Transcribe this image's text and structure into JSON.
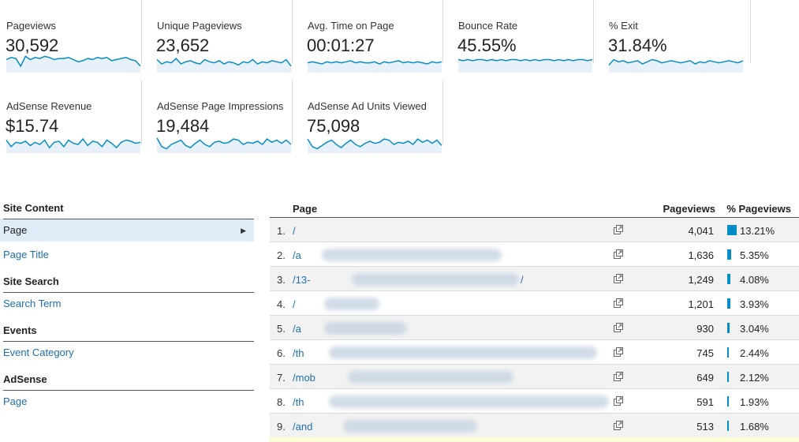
{
  "metrics": [
    {
      "id": "pageviews",
      "label": "Pageviews",
      "value": "30,592",
      "spark": [
        12,
        14,
        13,
        6,
        15,
        12,
        14,
        13,
        15,
        14,
        12,
        13,
        13,
        14,
        12,
        10,
        11,
        13,
        12,
        14,
        13,
        14,
        11,
        12,
        13,
        14,
        12,
        11,
        6
      ]
    },
    {
      "id": "unique-pageviews",
      "label": "Unique Pageviews",
      "value": "23,652",
      "spark": [
        12,
        8,
        10,
        9,
        13,
        8,
        10,
        11,
        9,
        8,
        12,
        10,
        9,
        11,
        8,
        10,
        9,
        7,
        10,
        9,
        12,
        8,
        10,
        9,
        11,
        10,
        9,
        12,
        6
      ]
    },
    {
      "id": "avg-time",
      "label": "Avg. Time on Page",
      "value": "00:01:27",
      "spark": [
        9,
        10,
        9,
        8,
        10,
        9,
        10,
        9,
        10,
        11,
        9,
        10,
        9,
        9,
        10,
        8,
        10,
        9,
        10,
        11,
        9,
        10,
        9,
        10,
        9,
        8,
        10,
        9,
        10
      ]
    },
    {
      "id": "bounce-rate",
      "label": "Bounce Rate",
      "value": "45.55%",
      "spark": [
        12,
        11,
        12,
        11,
        12,
        12,
        11,
        12,
        11,
        12,
        11,
        12,
        12,
        11,
        12,
        11,
        12,
        11,
        12,
        12,
        11,
        12,
        11,
        12,
        11,
        12,
        12,
        11,
        12
      ]
    },
    {
      "id": "exit",
      "label": "% Exit",
      "value": "31.84%",
      "spark": [
        7,
        12,
        10,
        11,
        9,
        10,
        11,
        8,
        10,
        12,
        11,
        9,
        10,
        11,
        10,
        9,
        10,
        11,
        8,
        10,
        9,
        11,
        10,
        9,
        10,
        11,
        10,
        9,
        11
      ]
    },
    {
      "id": "adsense-revenue",
      "label": "AdSense Revenue",
      "value": "$15.74",
      "spark": [
        12,
        6,
        10,
        9,
        11,
        7,
        10,
        8,
        12,
        5,
        10,
        11,
        6,
        12,
        9,
        8,
        13,
        7,
        11,
        10,
        6,
        12,
        9,
        5,
        10,
        12,
        11,
        9,
        10
      ]
    },
    {
      "id": "adsense-impressions",
      "label": "AdSense Page Impressions",
      "value": "19,484",
      "spark": [
        14,
        6,
        4,
        8,
        10,
        12,
        7,
        5,
        9,
        12,
        8,
        6,
        10,
        11,
        9,
        10,
        13,
        12,
        8,
        10,
        9,
        11,
        8,
        13,
        10,
        12,
        9,
        12,
        8
      ]
    },
    {
      "id": "adsense-units",
      "label": "AdSense Ad Units Viewed",
      "value": "75,098",
      "spark": [
        13,
        6,
        4,
        7,
        10,
        12,
        8,
        5,
        9,
        12,
        8,
        6,
        9,
        11,
        9,
        10,
        13,
        12,
        8,
        10,
        9,
        11,
        8,
        13,
        10,
        12,
        9,
        12,
        7
      ]
    }
  ],
  "nav": {
    "site_content": {
      "heading": "Site Content",
      "items": [
        "Page",
        "Page Title"
      ],
      "selected": "Page"
    },
    "site_search": {
      "heading": "Site Search",
      "items": [
        "Search Term"
      ]
    },
    "events": {
      "heading": "Events",
      "items": [
        "Event Category"
      ]
    },
    "adsense": {
      "heading": "AdSense",
      "items": [
        "Page"
      ]
    }
  },
  "table": {
    "columns": {
      "page": "Page",
      "pageviews": "Pageviews",
      "pct": "% Pageviews"
    },
    "rows": [
      {
        "rank": "1.",
        "page": "/",
        "pageviews": "4,041",
        "pct": "13.21%",
        "pct_value": 13.21
      },
      {
        "rank": "2.",
        "page": "/a",
        "pageviews": "1,636",
        "pct": "5.35%",
        "pct_value": 5.35
      },
      {
        "rank": "3.",
        "page": "/13-",
        "suffix": "/",
        "pageviews": "1,249",
        "pct": "4.08%",
        "pct_value": 4.08
      },
      {
        "rank": "4.",
        "page": "/",
        "pageviews": "1,201",
        "pct": "3.93%",
        "pct_value": 3.93
      },
      {
        "rank": "5.",
        "page": "/a",
        "pageviews": "930",
        "pct": "3.04%",
        "pct_value": 3.04
      },
      {
        "rank": "6.",
        "page": "/th",
        "pageviews": "745",
        "pct": "2.44%",
        "pct_value": 2.44
      },
      {
        "rank": "7.",
        "page": "/mob",
        "pageviews": "649",
        "pct": "2.12%",
        "pct_value": 2.12
      },
      {
        "rank": "8.",
        "page": "/th",
        "pageviews": "591",
        "pct": "1.93%",
        "pct_value": 1.93
      },
      {
        "rank": "9.",
        "page": "/and",
        "pageviews": "513",
        "pct": "1.68%",
        "pct_value": 1.68
      }
    ]
  },
  "colors": {
    "accent": "#058dc7",
    "link": "#1f6fb0",
    "selected_bg": "#e0ecf7"
  }
}
